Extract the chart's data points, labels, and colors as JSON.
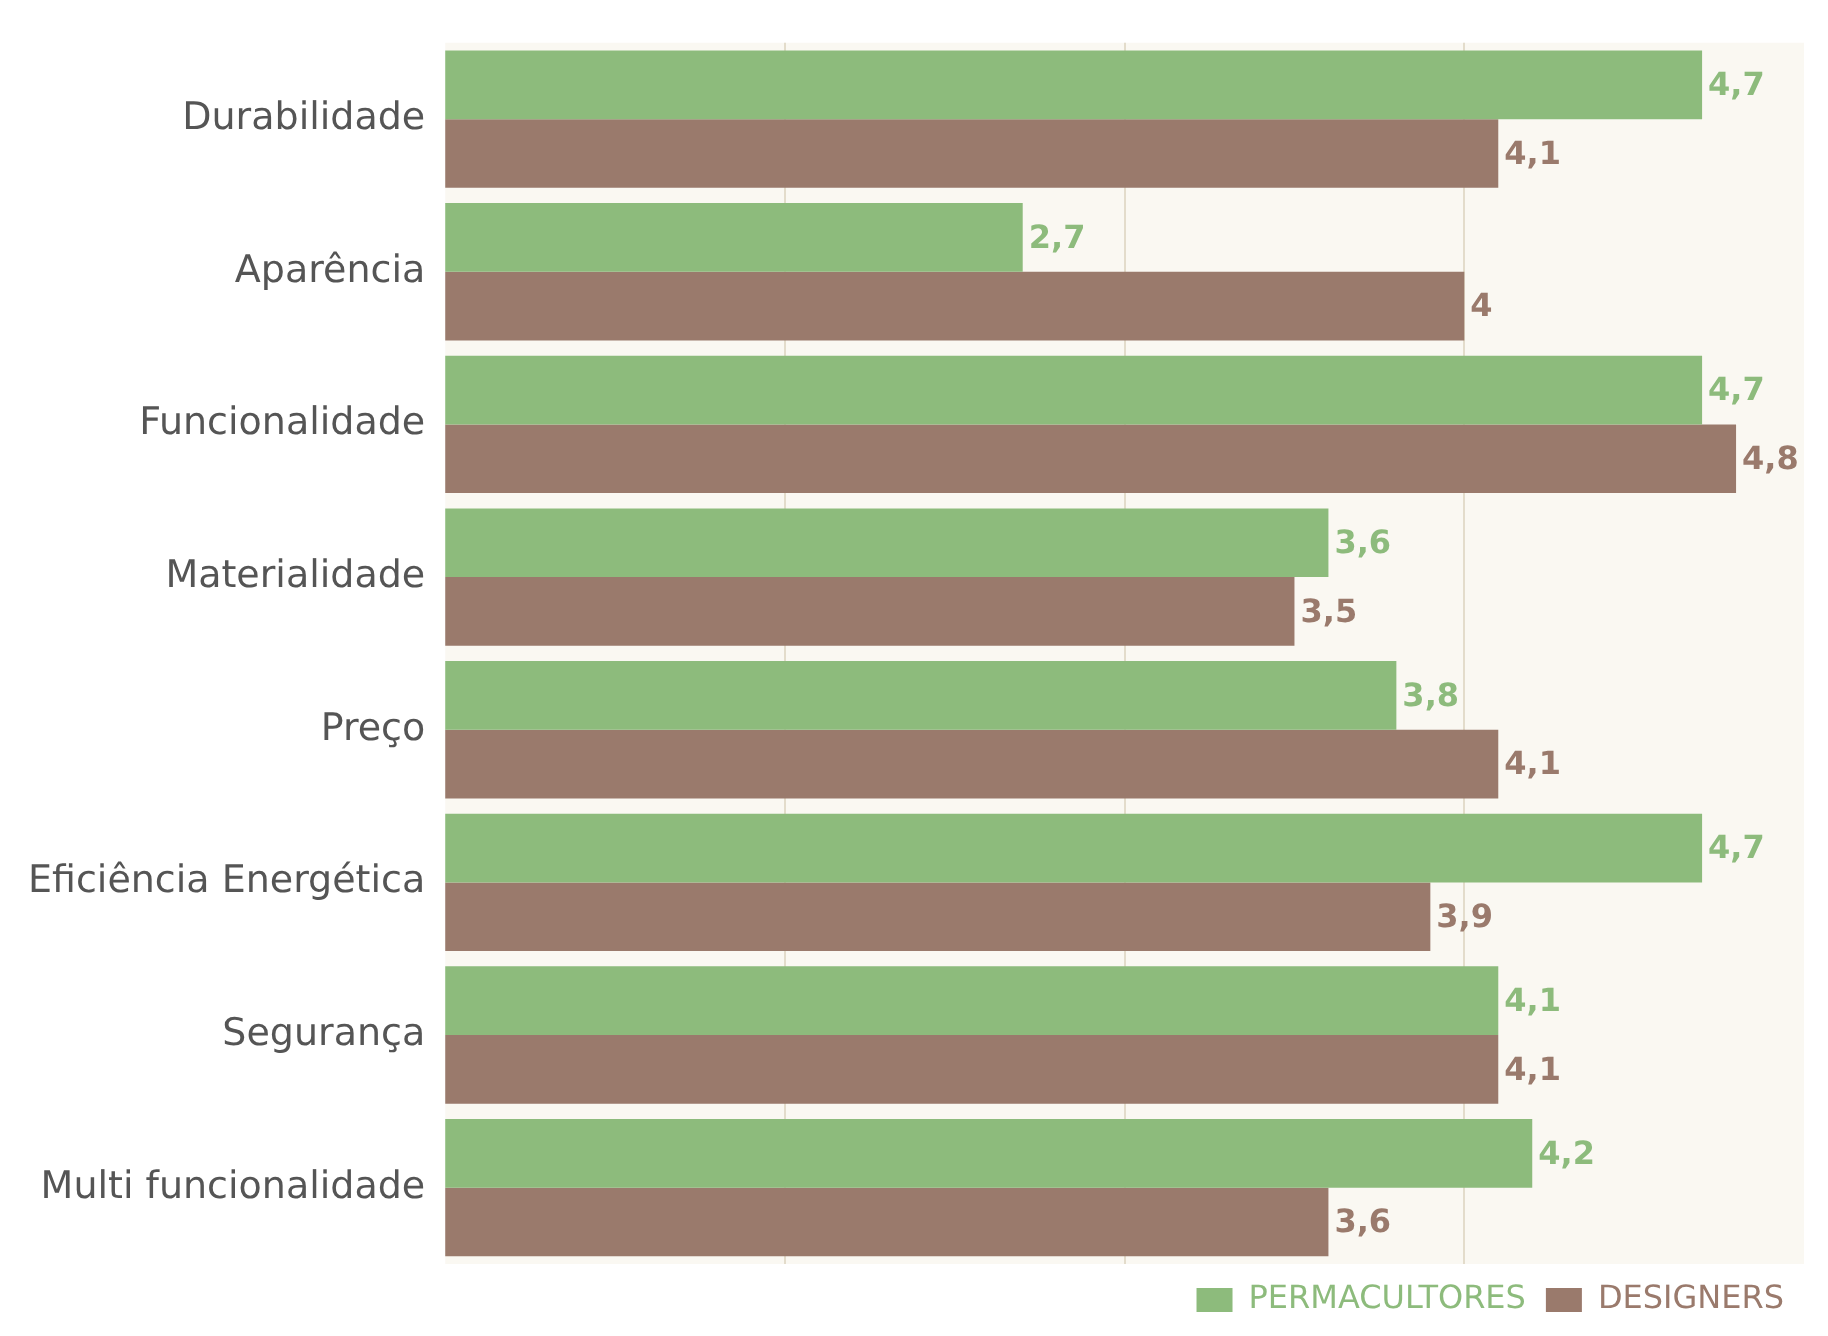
{
  "chart_data": {
    "type": "bar",
    "orientation": "horizontal",
    "categories": [
      "Durabilidade",
      "Aparência",
      "Funcionalidade",
      "Materialidade",
      "Preço",
      "Eficiência Energética",
      "Segurança",
      "Multi funcionalidade"
    ],
    "series": [
      {
        "name": "PERMACULTORES",
        "color": "#8dbb7c",
        "values": [
          4.7,
          2.7,
          4.7,
          3.6,
          3.8,
          4.7,
          4.1,
          4.2
        ],
        "value_labels": [
          "4,7",
          "2,7",
          "4,7",
          "3,6",
          "3,8",
          "4,7",
          "4,1",
          "4,2"
        ]
      },
      {
        "name": "DESIGNERS",
        "color": "#9a7a6c",
        "values": [
          4.1,
          4,
          4.8,
          3.5,
          4.1,
          3.9,
          4.1,
          3.6
        ],
        "value_labels": [
          "4,1",
          "4",
          "4,8",
          "3,5",
          "4,1",
          "3,9",
          "4,1",
          "3,6"
        ]
      }
    ],
    "xlim": [
      1,
      5
    ],
    "xticks": [
      {
        "value": 2,
        "label": null
      },
      {
        "value": 3,
        "label": null
      },
      {
        "value": 4,
        "label": null
      }
    ],
    "tick_labels": "y",
    "grid": "x",
    "legend": "bottom right"
  }
}
